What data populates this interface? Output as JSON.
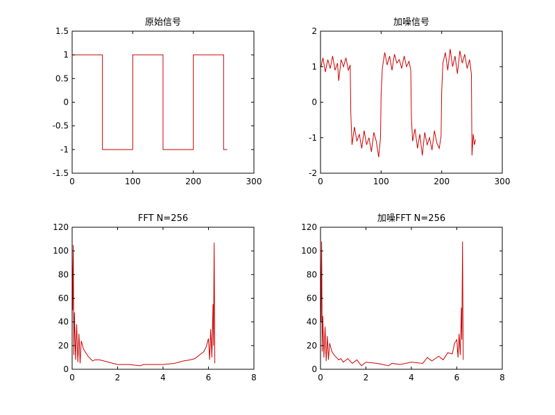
{
  "figure": {
    "background": "#ffffff",
    "line_color": "#cc0000",
    "axis_color": "#000000"
  },
  "chart_data": [
    {
      "type": "line",
      "title": "原始信号",
      "xlabel": "",
      "ylabel": "",
      "xlim": [
        0,
        300
      ],
      "ylim": [
        -1.5,
        1.5
      ],
      "xticks": [
        0,
        100,
        200,
        300
      ],
      "yticks": [
        -1.5,
        -1,
        -0.5,
        0,
        0.5,
        1,
        1.5
      ],
      "grid": false,
      "series": [
        {
          "x": [
            1,
            50,
            50,
            100,
            100,
            150,
            150,
            200,
            200,
            250,
            250,
            256
          ],
          "y": [
            1,
            1,
            -1,
            -1,
            1,
            1,
            -1,
            -1,
            1,
            1,
            -1,
            -1
          ]
        }
      ]
    },
    {
      "type": "line",
      "title": "加噪信号",
      "xlabel": "",
      "ylabel": "",
      "xlim": [
        0,
        300
      ],
      "ylim": [
        -2,
        2
      ],
      "xticks": [
        0,
        100,
        200,
        300
      ],
      "yticks": [
        -2,
        -1,
        0,
        1,
        2
      ],
      "grid": false,
      "series": [
        {
          "x": [
            1,
            4,
            8,
            12,
            16,
            20,
            24,
            28,
            30,
            34,
            38,
            42,
            46,
            49,
            50,
            52,
            56,
            60,
            64,
            68,
            72,
            76,
            80,
            84,
            88,
            92,
            96,
            99,
            100,
            102,
            106,
            110,
            114,
            118,
            122,
            126,
            130,
            134,
            138,
            142,
            146,
            149,
            150,
            152,
            156,
            160,
            164,
            168,
            172,
            176,
            180,
            184,
            188,
            192,
            196,
            199,
            200,
            202,
            206,
            210,
            214,
            218,
            222,
            226,
            230,
            234,
            238,
            242,
            246,
            249,
            250,
            252,
            254,
            256
          ],
          "y": [
            1.0,
            1.25,
            0.85,
            1.2,
            0.95,
            1.3,
            0.9,
            1.1,
            0.6,
            1.2,
            1.0,
            1.25,
            0.9,
            1.05,
            -0.3,
            -1.2,
            -0.7,
            -1.1,
            -0.9,
            -1.3,
            -0.8,
            -1.2,
            -1.0,
            -1.4,
            -0.85,
            -1.1,
            -1.55,
            -1.0,
            0.2,
            0.95,
            1.4,
            1.05,
            1.3,
            0.9,
            1.35,
            1.1,
            1.2,
            0.95,
            1.3,
            1.0,
            1.15,
            0.9,
            -0.4,
            -1.1,
            -0.75,
            -1.3,
            -0.9,
            -1.5,
            -0.85,
            -1.2,
            -1.0,
            -1.35,
            -0.8,
            -1.15,
            -1.3,
            -0.95,
            0.3,
            1.1,
            1.4,
            0.9,
            1.5,
            1.0,
            1.3,
            0.8,
            1.45,
            1.1,
            1.35,
            0.95,
            1.2,
            0.8,
            -1.5,
            -0.9,
            -1.2,
            -1.05
          ]
        }
      ]
    },
    {
      "type": "line",
      "title": "FFT N=256",
      "xlabel": "",
      "ylabel": "",
      "xlim": [
        0,
        8
      ],
      "ylim": [
        0,
        120
      ],
      "xticks": [
        0,
        2,
        4,
        6,
        8
      ],
      "yticks": [
        0,
        20,
        40,
        60,
        80,
        100,
        120
      ],
      "grid": false,
      "series": [
        {
          "x": [
            0.0,
            0.025,
            0.05,
            0.075,
            0.1,
            0.15,
            0.2,
            0.25,
            0.3,
            0.35,
            0.4,
            0.5,
            0.6,
            0.7,
            0.8,
            0.9,
            1.0,
            1.2,
            1.4,
            1.6,
            1.8,
            2.0,
            2.5,
            3.0,
            3.14,
            3.5,
            4.0,
            4.5,
            4.7,
            4.9,
            5.2,
            5.4,
            5.6,
            5.8,
            5.9,
            6.0,
            6.05,
            6.1,
            6.15,
            6.2,
            6.22,
            6.25,
            6.28
          ],
          "y": [
            102,
            50,
            105,
            12,
            48,
            8,
            38,
            6,
            30,
            5,
            24,
            17,
            14,
            11,
            9,
            7,
            8,
            8,
            7,
            6,
            5,
            4,
            4,
            3,
            4,
            4,
            4,
            5,
            6,
            7,
            8,
            9,
            12,
            15,
            19,
            26,
            8,
            34,
            10,
            55,
            20,
            107,
            5
          ]
        }
      ]
    },
    {
      "type": "line",
      "title": "加噪FFT N=256",
      "xlabel": "",
      "ylabel": "",
      "xlim": [
        0,
        8
      ],
      "ylim": [
        0,
        120
      ],
      "xticks": [
        0,
        2,
        4,
        6,
        8
      ],
      "yticks": [
        0,
        20,
        40,
        60,
        80,
        100,
        120
      ],
      "grid": false,
      "series": [
        {
          "x": [
            0.0,
            0.025,
            0.05,
            0.075,
            0.1,
            0.15,
            0.2,
            0.25,
            0.3,
            0.35,
            0.4,
            0.5,
            0.6,
            0.7,
            0.8,
            0.9,
            1.0,
            1.2,
            1.4,
            1.6,
            1.8,
            2.0,
            2.5,
            3.0,
            3.14,
            3.5,
            4.0,
            4.5,
            4.7,
            4.9,
            5.2,
            5.4,
            5.6,
            5.8,
            5.9,
            6.0,
            6.05,
            6.1,
            6.15,
            6.2,
            6.22,
            6.25,
            6.28
          ],
          "y": [
            103,
            40,
            108,
            15,
            45,
            10,
            36,
            7,
            28,
            8,
            22,
            15,
            12,
            10,
            8,
            9,
            6,
            9,
            5,
            8,
            3,
            6,
            5,
            3,
            5,
            4,
            6,
            5,
            10,
            7,
            11,
            8,
            14,
            13,
            22,
            25,
            10,
            30,
            12,
            52,
            25,
            108,
            8
          ]
        }
      ]
    }
  ]
}
